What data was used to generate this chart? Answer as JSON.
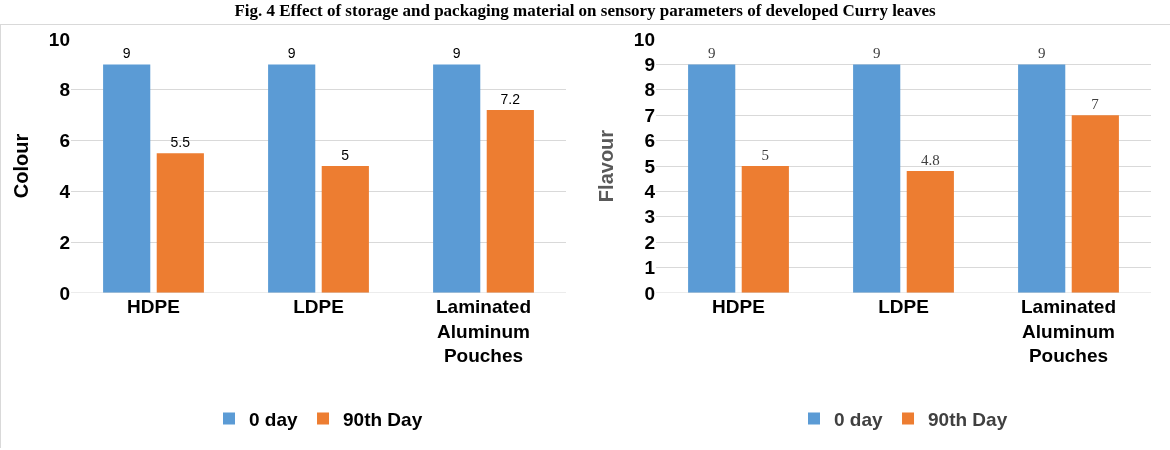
{
  "chart_data": [
    {
      "type": "bar",
      "title": "Fig. 4 Effect of storage and packaging material on sensory parameters of developed Curry leaves",
      "categories": [
        "HDPE",
        "LDPE",
        "Laminated Aluminum Pouches"
      ],
      "ylabel": "Colour",
      "ylim": [
        0,
        10
      ],
      "yticks": [
        0,
        2,
        4,
        6,
        8,
        10
      ],
      "grid": "y",
      "legend": "bottom",
      "data_labels": true,
      "series": [
        {
          "name": "0 day",
          "color": "#5b9bd5",
          "values": [
            9,
            9,
            9
          ]
        },
        {
          "name": "90th Day",
          "color": "#ed7d31",
          "values": [
            5.5,
            5,
            7.2
          ]
        }
      ]
    },
    {
      "type": "bar",
      "categories": [
        "HDPE",
        "LDPE",
        "Laminated Aluminum Pouches"
      ],
      "ylabel": "Flavour",
      "ylim": [
        0,
        10
      ],
      "yticks": [
        0,
        1,
        2,
        3,
        4,
        5,
        6,
        7,
        8,
        9,
        10
      ],
      "grid": "y",
      "legend": "bottom",
      "data_labels": true,
      "series": [
        {
          "name": "0 day",
          "color": "#5b9bd5",
          "values": [
            9,
            9,
            9
          ]
        },
        {
          "name": "90th Day",
          "color": "#ed7d31",
          "values": [
            5,
            4.8,
            7
          ]
        }
      ]
    }
  ]
}
